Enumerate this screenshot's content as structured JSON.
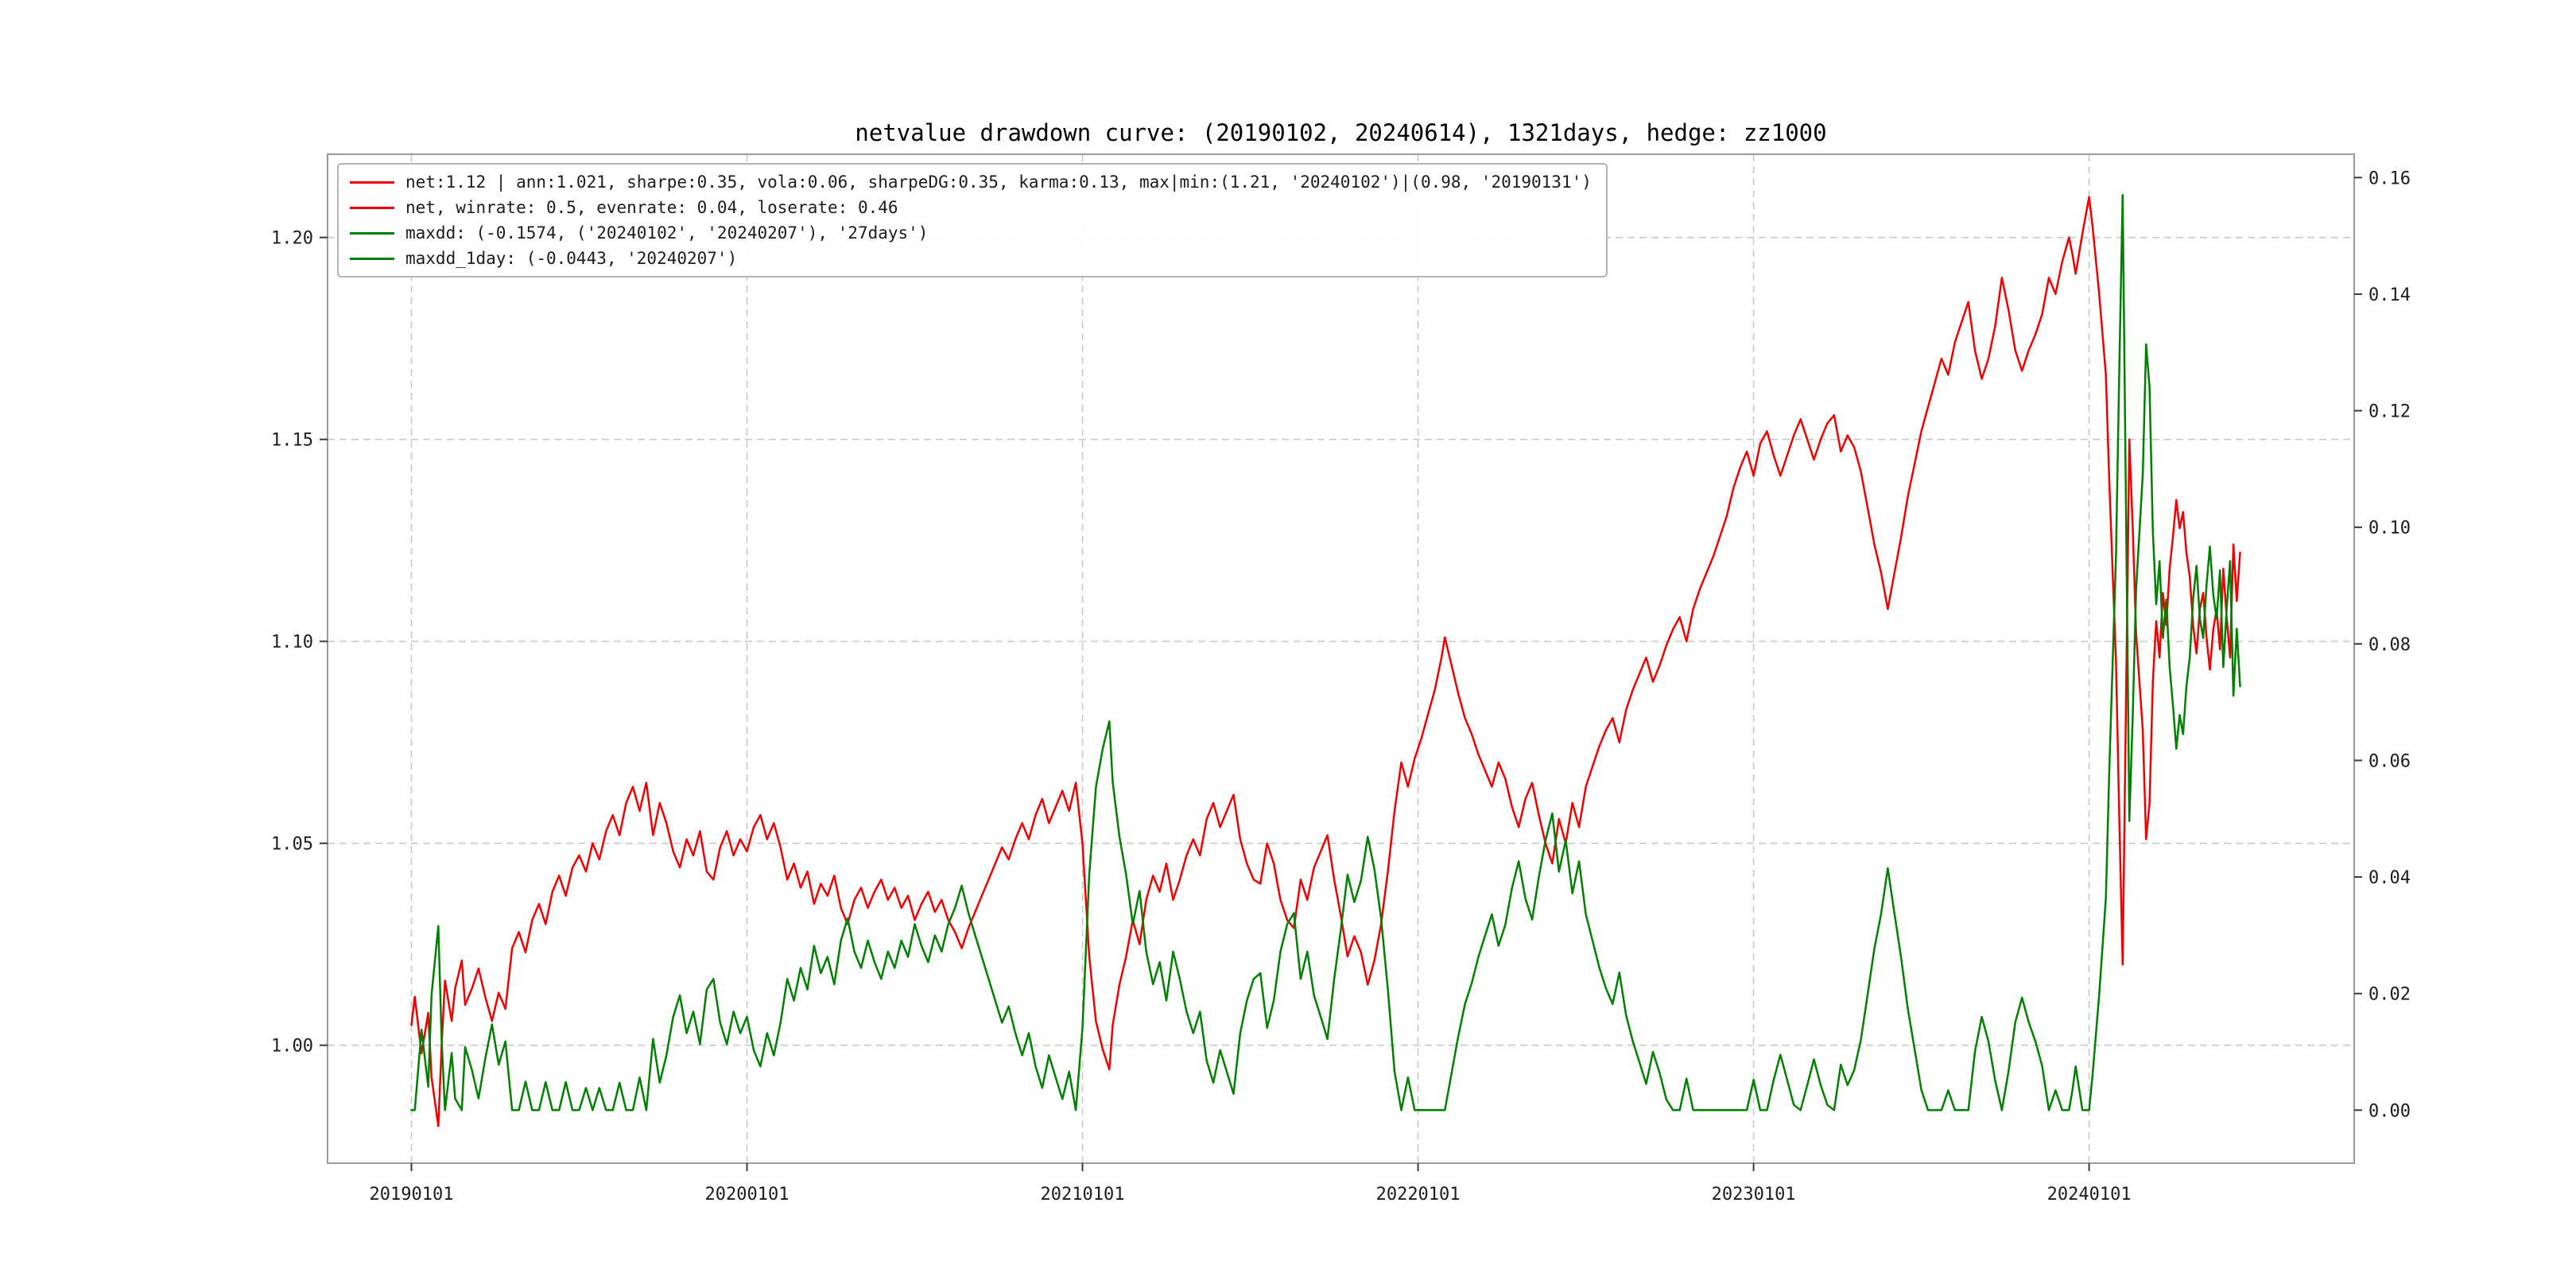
{
  "chart_data": {
    "type": "line",
    "title": "netvalue drawdown curve: (20190102, 20240614), 1321days, hedge: zz1000",
    "grid": true,
    "background": "#ffffff",
    "x_axis": {
      "ticks": [
        2019.0,
        2020.0,
        2021.0,
        2022.0,
        2023.0,
        2024.0
      ],
      "tick_labels": [
        "20190101",
        "20200101",
        "20210101",
        "20220101",
        "20230101",
        "20240101"
      ],
      "range": [
        2018.75,
        2024.79
      ]
    },
    "y_axis_left": {
      "ticks": [
        1.0,
        1.05,
        1.1,
        1.15,
        1.2
      ],
      "tick_labels": [
        "1.00",
        "1.05",
        "1.10",
        "1.15",
        "1.20"
      ],
      "range": [
        0.9708,
        1.2206
      ]
    },
    "y_axis_right": {
      "ticks": [
        0.0,
        0.02,
        0.04,
        0.06,
        0.08,
        0.1,
        0.12,
        0.14,
        0.16
      ],
      "tick_labels": [
        "0.00",
        "0.02",
        "0.04",
        "0.06",
        "0.08",
        "0.10",
        "0.12",
        "0.14",
        "0.16"
      ],
      "range": [
        -0.0091,
        0.164
      ]
    },
    "legend": {
      "position": "upper-left",
      "entries": [
        {
          "label": "net:1.12 | ann:1.021, sharpe:0.35, vola:0.06, sharpeDG:0.35, karma:0.13, max|min:(1.21, '20240102')|(0.98, '20190131')",
          "color": "#f20000"
        },
        {
          "label": "net, winrate: 0.5, evenrate: 0.04, loserate: 0.46",
          "color": "#f20000"
        },
        {
          "label": "maxdd: (-0.1574, ('20240102', '20240207'), '27days')",
          "color": "#008000"
        },
        {
          "label": "maxdd_1day: (-0.0443, '20240207')",
          "color": "#008000"
        }
      ]
    },
    "x": [
      2019.0,
      2019.01,
      2019.03,
      2019.05,
      2019.06,
      2019.08,
      2019.09,
      2019.1,
      2019.12,
      2019.13,
      2019.15,
      2019.16,
      2019.18,
      2019.2,
      2019.22,
      2019.24,
      2019.26,
      2019.28,
      2019.3,
      2019.32,
      2019.34,
      2019.36,
      2019.38,
      2019.4,
      2019.42,
      2019.44,
      2019.46,
      2019.48,
      2019.5,
      2019.52,
      2019.54,
      2019.56,
      2019.58,
      2019.6,
      2019.62,
      2019.64,
      2019.66,
      2019.68,
      2019.7,
      2019.72,
      2019.74,
      2019.76,
      2019.78,
      2019.8,
      2019.82,
      2019.84,
      2019.86,
      2019.88,
      2019.9,
      2019.92,
      2019.94,
      2019.96,
      2019.98,
      2020.0,
      2020.02,
      2020.04,
      2020.06,
      2020.08,
      2020.1,
      2020.12,
      2020.14,
      2020.16,
      2020.18,
      2020.2,
      2020.22,
      2020.24,
      2020.26,
      2020.28,
      2020.3,
      2020.32,
      2020.34,
      2020.36,
      2020.38,
      2020.4,
      2020.42,
      2020.44,
      2020.46,
      2020.48,
      2020.5,
      2020.52,
      2020.54,
      2020.56,
      2020.58,
      2020.6,
      2020.62,
      2020.64,
      2020.66,
      2020.68,
      2020.7,
      2020.72,
      2020.74,
      2020.76,
      2020.78,
      2020.8,
      2020.82,
      2020.84,
      2020.86,
      2020.88,
      2020.9,
      2020.92,
      2020.94,
      2020.96,
      2020.98,
      2021.0,
      2021.02,
      2021.04,
      2021.06,
      2021.08,
      2021.09,
      2021.11,
      2021.13,
      2021.15,
      2021.17,
      2021.19,
      2021.21,
      2021.23,
      2021.25,
      2021.27,
      2021.29,
      2021.31,
      2021.33,
      2021.35,
      2021.37,
      2021.39,
      2021.41,
      2021.43,
      2021.45,
      2021.47,
      2021.49,
      2021.51,
      2021.53,
      2021.55,
      2021.57,
      2021.59,
      2021.61,
      2021.63,
      2021.65,
      2021.67,
      2021.69,
      2021.71,
      2021.73,
      2021.75,
      2021.77,
      2021.79,
      2021.81,
      2021.83,
      2021.85,
      2021.87,
      2021.89,
      2021.91,
      2021.93,
      2021.95,
      2021.97,
      2021.99,
      2022.01,
      2022.03,
      2022.05,
      2022.07,
      2022.08,
      2022.1,
      2022.12,
      2022.14,
      2022.16,
      2022.18,
      2022.2,
      2022.22,
      2022.24,
      2022.26,
      2022.28,
      2022.3,
      2022.32,
      2022.34,
      2022.36,
      2022.38,
      2022.4,
      2022.42,
      2022.44,
      2022.46,
      2022.48,
      2022.5,
      2022.52,
      2022.54,
      2022.56,
      2022.58,
      2022.6,
      2022.62,
      2022.64,
      2022.66,
      2022.68,
      2022.7,
      2022.72,
      2022.74,
      2022.76,
      2022.78,
      2022.8,
      2022.82,
      2022.84,
      2022.86,
      2022.88,
      2022.9,
      2022.92,
      2022.94,
      2022.96,
      2022.98,
      2023.0,
      2023.02,
      2023.04,
      2023.06,
      2023.08,
      2023.1,
      2023.12,
      2023.14,
      2023.16,
      2023.18,
      2023.2,
      2023.22,
      2023.24,
      2023.26,
      2023.28,
      2023.3,
      2023.32,
      2023.34,
      2023.36,
      2023.38,
      2023.4,
      2023.42,
      2023.44,
      2023.46,
      2023.48,
      2023.5,
      2023.52,
      2023.54,
      2023.56,
      2023.58,
      2023.6,
      2023.62,
      2023.64,
      2023.66,
      2023.68,
      2023.7,
      2023.72,
      2023.74,
      2023.76,
      2023.78,
      2023.8,
      2023.82,
      2023.84,
      2023.86,
      2023.88,
      2023.9,
      2023.92,
      2023.94,
      2023.95,
      2023.96,
      2023.98,
      2024.0,
      2024.01,
      2024.03,
      2024.05,
      2024.06,
      2024.08,
      2024.09,
      2024.1,
      2024.11,
      2024.12,
      2024.13,
      2024.14,
      2024.16,
      2024.17,
      2024.18,
      2024.19,
      2024.2,
      2024.21,
      2024.22,
      2024.23,
      2024.24,
      2024.25,
      2024.26,
      2024.27,
      2024.28,
      2024.29,
      2024.3,
      2024.31,
      2024.32,
      2024.33,
      2024.34,
      2024.35,
      2024.36,
      2024.37,
      2024.38,
      2024.39,
      2024.4,
      2024.41,
      2024.42,
      2024.43,
      2024.44,
      2024.45
    ],
    "series": [
      {
        "name": "net",
        "axis": "left",
        "color": "#f20000",
        "values": [
          1.005,
          1.012,
          0.998,
          1.008,
          0.992,
          0.98,
          1.0,
          1.016,
          1.006,
          1.014,
          1.021,
          1.01,
          1.014,
          1.019,
          1.012,
          1.006,
          1.013,
          1.009,
          1.024,
          1.028,
          1.023,
          1.031,
          1.035,
          1.03,
          1.038,
          1.042,
          1.037,
          1.044,
          1.047,
          1.043,
          1.05,
          1.046,
          1.053,
          1.057,
          1.052,
          1.06,
          1.064,
          1.058,
          1.065,
          1.052,
          1.06,
          1.055,
          1.048,
          1.044,
          1.051,
          1.047,
          1.053,
          1.043,
          1.041,
          1.049,
          1.053,
          1.047,
          1.051,
          1.048,
          1.054,
          1.057,
          1.051,
          1.055,
          1.049,
          1.041,
          1.045,
          1.039,
          1.043,
          1.035,
          1.04,
          1.037,
          1.042,
          1.034,
          1.03,
          1.036,
          1.039,
          1.034,
          1.038,
          1.041,
          1.036,
          1.039,
          1.034,
          1.037,
          1.031,
          1.035,
          1.038,
          1.033,
          1.036,
          1.031,
          1.028,
          1.024,
          1.029,
          1.033,
          1.037,
          1.041,
          1.045,
          1.049,
          1.046,
          1.051,
          1.055,
          1.051,
          1.057,
          1.061,
          1.055,
          1.059,
          1.063,
          1.058,
          1.065,
          1.05,
          1.022,
          1.006,
          0.999,
          0.994,
          1.005,
          1.015,
          1.022,
          1.031,
          1.025,
          1.036,
          1.042,
          1.038,
          1.045,
          1.036,
          1.041,
          1.047,
          1.051,
          1.047,
          1.056,
          1.06,
          1.054,
          1.058,
          1.062,
          1.051,
          1.045,
          1.041,
          1.04,
          1.05,
          1.045,
          1.036,
          1.031,
          1.029,
          1.041,
          1.036,
          1.044,
          1.048,
          1.052,
          1.041,
          1.032,
          1.022,
          1.027,
          1.023,
          1.015,
          1.021,
          1.03,
          1.043,
          1.058,
          1.07,
          1.064,
          1.071,
          1.076,
          1.082,
          1.088,
          1.096,
          1.101,
          1.094,
          1.087,
          1.081,
          1.077,
          1.072,
          1.068,
          1.064,
          1.07,
          1.066,
          1.059,
          1.054,
          1.061,
          1.065,
          1.057,
          1.05,
          1.045,
          1.056,
          1.05,
          1.06,
          1.054,
          1.064,
          1.069,
          1.074,
          1.078,
          1.081,
          1.075,
          1.083,
          1.088,
          1.092,
          1.096,
          1.09,
          1.094,
          1.099,
          1.103,
          1.106,
          1.1,
          1.108,
          1.113,
          1.117,
          1.121,
          1.126,
          1.131,
          1.138,
          1.143,
          1.147,
          1.141,
          1.149,
          1.152,
          1.146,
          1.141,
          1.146,
          1.151,
          1.155,
          1.15,
          1.145,
          1.15,
          1.154,
          1.156,
          1.147,
          1.151,
          1.148,
          1.142,
          1.133,
          1.124,
          1.117,
          1.108,
          1.117,
          1.126,
          1.136,
          1.144,
          1.152,
          1.158,
          1.164,
          1.17,
          1.166,
          1.174,
          1.179,
          1.184,
          1.172,
          1.165,
          1.17,
          1.178,
          1.19,
          1.182,
          1.172,
          1.167,
          1.172,
          1.176,
          1.181,
          1.19,
          1.186,
          1.194,
          1.2,
          1.196,
          1.191,
          1.201,
          1.21,
          1.203,
          1.186,
          1.166,
          1.14,
          1.095,
          1.056,
          1.02,
          1.085,
          1.15,
          1.128,
          1.102,
          1.078,
          1.051,
          1.06,
          1.09,
          1.105,
          1.096,
          1.112,
          1.104,
          1.118,
          1.126,
          1.135,
          1.128,
          1.132,
          1.122,
          1.116,
          1.104,
          1.097,
          1.108,
          1.112,
          1.101,
          1.093,
          1.103,
          1.108,
          1.098,
          1.118,
          1.106,
          1.096,
          1.124,
          1.11,
          1.122
        ]
      },
      {
        "name": "maxdd",
        "axis": "right",
        "color": "#008000",
        "values": [
          0.0,
          0.0,
          0.0138,
          0.004,
          0.0198,
          0.0316,
          0.0119,
          0.0,
          0.0098,
          0.002,
          0.0,
          0.0108,
          0.0069,
          0.002,
          0.0088,
          0.0147,
          0.0078,
          0.0118,
          0.0,
          0.0,
          0.0049,
          0.0,
          0.0,
          0.0048,
          0.0,
          0.0,
          0.0048,
          0.0,
          0.0,
          0.0038,
          0.0,
          0.0038,
          0.0,
          0.0,
          0.0047,
          0.0,
          0.0,
          0.0056,
          0.0,
          0.0122,
          0.0047,
          0.0094,
          0.016,
          0.0197,
          0.0132,
          0.0169,
          0.0113,
          0.0207,
          0.0225,
          0.015,
          0.0113,
          0.0169,
          0.0132,
          0.016,
          0.0103,
          0.0075,
          0.0132,
          0.0094,
          0.015,
          0.0225,
          0.0188,
          0.0244,
          0.0207,
          0.0282,
          0.0235,
          0.0263,
          0.0216,
          0.0291,
          0.0329,
          0.0272,
          0.0244,
          0.0291,
          0.0254,
          0.0225,
          0.0272,
          0.0244,
          0.0291,
          0.0263,
          0.0319,
          0.0282,
          0.0254,
          0.03,
          0.0272,
          0.0319,
          0.0347,
          0.0385,
          0.0338,
          0.03,
          0.0263,
          0.0225,
          0.0188,
          0.015,
          0.0178,
          0.0132,
          0.0094,
          0.0132,
          0.0075,
          0.0038,
          0.0094,
          0.0056,
          0.0019,
          0.0066,
          0.0,
          0.0141,
          0.0404,
          0.0554,
          0.062,
          0.0667,
          0.0563,
          0.0469,
          0.0404,
          0.0319,
          0.0376,
          0.0272,
          0.0216,
          0.0254,
          0.0188,
          0.0272,
          0.0225,
          0.0169,
          0.0132,
          0.0169,
          0.0085,
          0.0047,
          0.0103,
          0.0066,
          0.0028,
          0.0132,
          0.0188,
          0.0225,
          0.0235,
          0.0141,
          0.0188,
          0.0272,
          0.0319,
          0.0338,
          0.0225,
          0.0272,
          0.0197,
          0.016,
          0.0122,
          0.0225,
          0.031,
          0.0404,
          0.0357,
          0.0394,
          0.0469,
          0.0413,
          0.0329,
          0.0207,
          0.0066,
          0.0,
          0.0056,
          0.0,
          0.0,
          0.0,
          0.0,
          0.0,
          0.0,
          0.0064,
          0.0127,
          0.0182,
          0.0218,
          0.0263,
          0.03,
          0.0336,
          0.0282,
          0.0318,
          0.0381,
          0.0427,
          0.0363,
          0.0327,
          0.04,
          0.0463,
          0.0509,
          0.0409,
          0.0463,
          0.0372,
          0.0427,
          0.0336,
          0.0291,
          0.0245,
          0.0209,
          0.0182,
          0.0236,
          0.0163,
          0.0118,
          0.0082,
          0.0045,
          0.01,
          0.0064,
          0.0018,
          0.0,
          0.0,
          0.0054,
          0.0,
          0.0,
          0.0,
          0.0,
          0.0,
          0.0,
          0.0,
          0.0,
          0.0,
          0.0052,
          0.0,
          0.0,
          0.0052,
          0.0095,
          0.0052,
          0.0009,
          0.0,
          0.0043,
          0.0087,
          0.0043,
          0.0009,
          0.0,
          0.0078,
          0.0043,
          0.0069,
          0.0121,
          0.0199,
          0.0277,
          0.0337,
          0.0415,
          0.0337,
          0.026,
          0.0173,
          0.0104,
          0.0035,
          0.0,
          0.0,
          0.0,
          0.0034,
          0.0,
          0.0,
          0.0,
          0.0101,
          0.016,
          0.0118,
          0.0051,
          0.0,
          0.0067,
          0.0151,
          0.0193,
          0.0151,
          0.0118,
          0.0076,
          0.0,
          0.0034,
          0.0,
          0.0,
          0.0033,
          0.0075,
          0.0,
          0.0,
          0.0058,
          0.0198,
          0.0364,
          0.0579,
          0.095,
          0.1273,
          0.157,
          0.1033,
          0.0496,
          0.0678,
          0.0893,
          0.1091,
          0.1314,
          0.124,
          0.0992,
          0.0868,
          0.0942,
          0.081,
          0.0876,
          0.076,
          0.0694,
          0.062,
          0.0678,
          0.0645,
          0.0727,
          0.0777,
          0.0876,
          0.0934,
          0.0843,
          0.081,
          0.0901,
          0.0967,
          0.0884,
          0.0843,
          0.0926,
          0.076,
          0.086,
          0.0942,
          0.0711,
          0.0826,
          0.0727
        ]
      }
    ]
  }
}
